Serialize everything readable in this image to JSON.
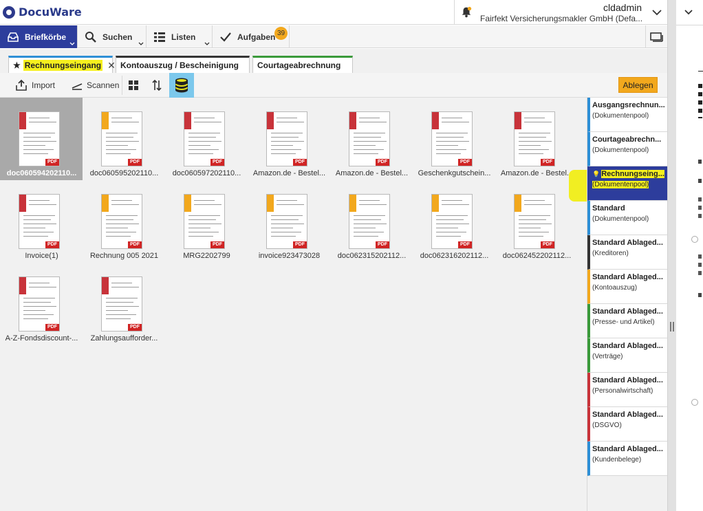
{
  "header": {
    "brand": "DocuWare",
    "user_name": "cldadmin",
    "organization": "Fairfekt Versicherungsmakler GmbH (Defa..."
  },
  "toolbar": {
    "briefkoerbe": "Briefkörbe",
    "suchen": "Suchen",
    "listen": "Listen",
    "aufgaben": "Aufgaben",
    "aufgaben_badge": "39"
  },
  "tabs": [
    {
      "label": "Rechnungseingang",
      "color": "#2d8fd6"
    },
    {
      "label": "Kontoauszug / Bescheinigung",
      "color": "#333333"
    },
    {
      "label": "Courtageabrechnung",
      "color": "#3a9a3a"
    }
  ],
  "subbar": {
    "import": "Import",
    "scannen": "Scannen",
    "ablegen": "Ablegen"
  },
  "documents": [
    {
      "name": "doc060594202110...",
      "bar": "#c8333a"
    },
    {
      "name": "doc060595202110...",
      "bar": "#f2a81d"
    },
    {
      "name": "doc060597202110...",
      "bar": "#c8333a"
    },
    {
      "name": "Amazon.de - Bestel...",
      "bar": "#c8333a"
    },
    {
      "name": "Amazon.de - Bestel...",
      "bar": "#c8333a"
    },
    {
      "name": "Geschenkgutschein...",
      "bar": "#c8333a"
    },
    {
      "name": "Amazon.de - Bestel...",
      "bar": "#c8333a"
    },
    {
      "name": "Invoice(1)",
      "bar": "#c8333a"
    },
    {
      "name": "Rechnung 005 2021",
      "bar": "#f2a81d"
    },
    {
      "name": "MRG2202799",
      "bar": "#f2a81d"
    },
    {
      "name": "invoice923473028",
      "bar": "#f2a81d"
    },
    {
      "name": "doc062315202112...",
      "bar": "#f2a81d"
    },
    {
      "name": "doc062316202112...",
      "bar": "#f2a81d"
    },
    {
      "name": "doc062452202112...",
      "bar": "#f2a81d"
    },
    {
      "name": "A-Z-Fondsdiscount-...",
      "bar": "#c8333a"
    },
    {
      "name": "Zahlungsaufforder...",
      "bar": "#c8333a"
    }
  ],
  "trays": [
    {
      "title": "Ausgangsrechnun...",
      "sub": "(Dokumentenpool)",
      "color": "#2d8fd6"
    },
    {
      "title": "Courtageabrechn...",
      "sub": "(Dokumentenpool)",
      "color": "#2d8fd6"
    },
    {
      "title": "Rechnungseing...",
      "sub": "(Dokumentenpool)",
      "color": "#2d3d9c"
    },
    {
      "title": "Standard",
      "sub": "(Dokumentenpool)",
      "color": "#2d8fd6"
    },
    {
      "title": "Standard Ablaged...",
      "sub": "(Kreditoren)",
      "color": "#333333"
    },
    {
      "title": "Standard Ablaged...",
      "sub": "(Kontoauszug)",
      "color": "#f2a81d"
    },
    {
      "title": "Standard Ablaged...",
      "sub": "(Presse- und Artikel)",
      "color": "#3a9a3a"
    },
    {
      "title": "Standard Ablaged...",
      "sub": "(Verträge)",
      "color": "#3a9a3a"
    },
    {
      "title": "Standard Ablaged...",
      "sub": "(Personalwirtschaft)",
      "color": "#c8333a"
    },
    {
      "title": "Standard Ablaged...",
      "sub": "(DSGVO)",
      "color": "#c8333a"
    },
    {
      "title": "Standard Ablaged...",
      "sub": "(Kundenbelege)",
      "color": "#2d8fd6"
    }
  ]
}
